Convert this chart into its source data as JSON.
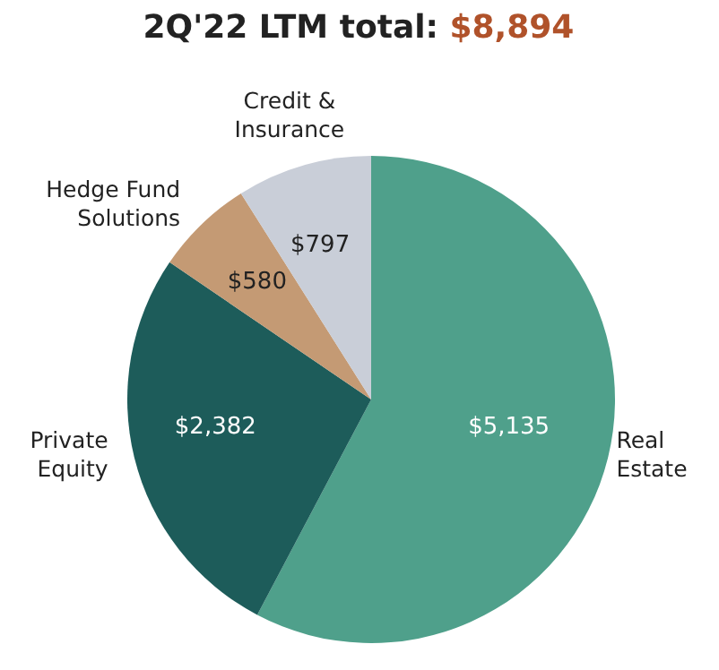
{
  "chart_data": {
    "type": "pie",
    "title": "2Q'22 LTM total:",
    "annotations": [
      "$8,894"
    ],
    "categories": [
      "Real Estate",
      "Private Equity",
      "Hedge Fund Solutions",
      "Credit & Insurance"
    ],
    "values": [
      5135,
      2382,
      580,
      797
    ],
    "colors": [
      "#4fa08b",
      "#1d5c5a",
      "#c49a74",
      "#c9ced8"
    ],
    "value_labels": [
      "$5,135",
      "$2,382",
      "$580",
      "$797"
    ],
    "legend": false
  }
}
